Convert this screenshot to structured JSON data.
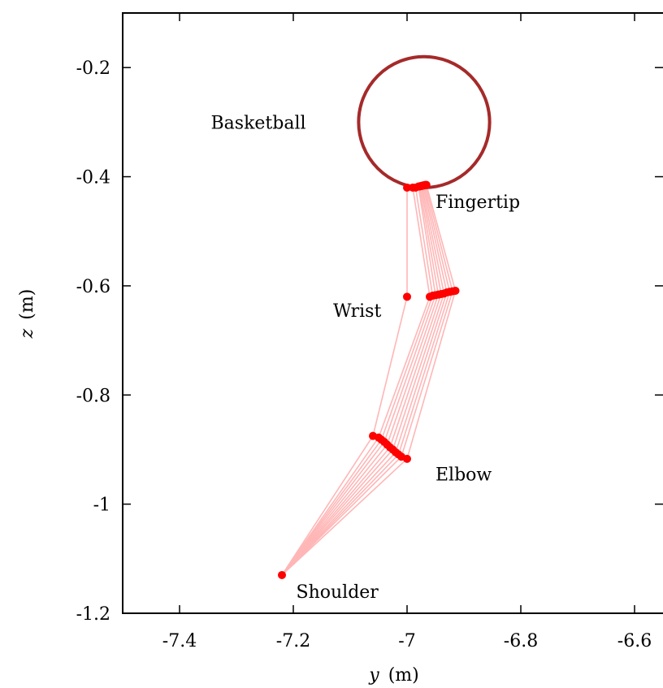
{
  "chart_data": {
    "type": "scatter",
    "title": "",
    "xlabel": {
      "var": "y",
      "unit": "(m)"
    },
    "ylabel": {
      "var": "z",
      "unit": "(m)"
    },
    "xlim": [
      -7.5,
      -6.55
    ],
    "ylim": [
      -1.2,
      -0.1
    ],
    "x_ticks": [
      -7.4,
      -7.2,
      -7,
      -6.8,
      -6.6
    ],
    "x_tick_labels": [
      "-7.4",
      "-7.2",
      "-7",
      "-6.8",
      "-6.6"
    ],
    "y_ticks": [
      -0.2,
      -0.4,
      -0.6,
      -0.8,
      -1,
      -1.2
    ],
    "y_tick_labels": [
      "-0.2",
      "-0.4",
      "-0.6",
      "-0.8",
      "-1",
      "-1.2"
    ],
    "grid": false,
    "colors": {
      "ball": "#a52a2a",
      "joint": "#ff0000",
      "link": "#ffb6b6"
    },
    "basketball": {
      "center": [
        -6.97,
        -0.3
      ],
      "radius": 0.12
    },
    "shoulder": {
      "y": -7.22,
      "z": -1.13
    },
    "poses": [
      {
        "elbow": [
          -7.06,
          -0.875
        ],
        "wrist": [
          -7.0,
          -0.62
        ],
        "fingertip": [
          -7.0,
          -0.42
        ]
      },
      {
        "elbow": [
          -7.05,
          -0.878
        ],
        "wrist": [
          -6.96,
          -0.62
        ],
        "fingertip": [
          -6.99,
          -0.42
        ]
      },
      {
        "elbow": [
          -7.045,
          -0.882
        ],
        "wrist": [
          -6.955,
          -0.618
        ],
        "fingertip": [
          -6.985,
          -0.42
        ]
      },
      {
        "elbow": [
          -7.04,
          -0.886
        ],
        "wrist": [
          -6.95,
          -0.617
        ],
        "fingertip": [
          -6.98,
          -0.418
        ]
      },
      {
        "elbow": [
          -7.035,
          -0.891
        ],
        "wrist": [
          -6.945,
          -0.616
        ],
        "fingertip": [
          -6.978,
          -0.418
        ]
      },
      {
        "elbow": [
          -7.03,
          -0.896
        ],
        "wrist": [
          -6.94,
          -0.615
        ],
        "fingertip": [
          -6.976,
          -0.417
        ]
      },
      {
        "elbow": [
          -7.025,
          -0.9
        ],
        "wrist": [
          -6.935,
          -0.614
        ],
        "fingertip": [
          -6.974,
          -0.417
        ]
      },
      {
        "elbow": [
          -7.02,
          -0.905
        ],
        "wrist": [
          -6.93,
          -0.612
        ],
        "fingertip": [
          -6.972,
          -0.416
        ]
      },
      {
        "elbow": [
          -7.015,
          -0.909
        ],
        "wrist": [
          -6.925,
          -0.611
        ],
        "fingertip": [
          -6.97,
          -0.416
        ]
      },
      {
        "elbow": [
          -7.01,
          -0.913
        ],
        "wrist": [
          -6.92,
          -0.61
        ],
        "fingertip": [
          -6.968,
          -0.415
        ]
      },
      {
        "elbow": [
          -7.0,
          -0.917
        ],
        "wrist": [
          -6.915,
          -0.609
        ],
        "fingertip": [
          -6.966,
          -0.415
        ]
      }
    ],
    "annotations": [
      {
        "text": "Basketball",
        "at": [
          -7.345,
          -0.3
        ]
      },
      {
        "text": "Fingertip",
        "at": [
          -6.95,
          -0.445
        ]
      },
      {
        "text": "Wrist",
        "at": [
          -7.13,
          -0.645
        ]
      },
      {
        "text": "Elbow",
        "at": [
          -6.95,
          -0.945
        ]
      },
      {
        "text": "Shoulder",
        "at": [
          -7.195,
          -1.16
        ]
      }
    ]
  }
}
